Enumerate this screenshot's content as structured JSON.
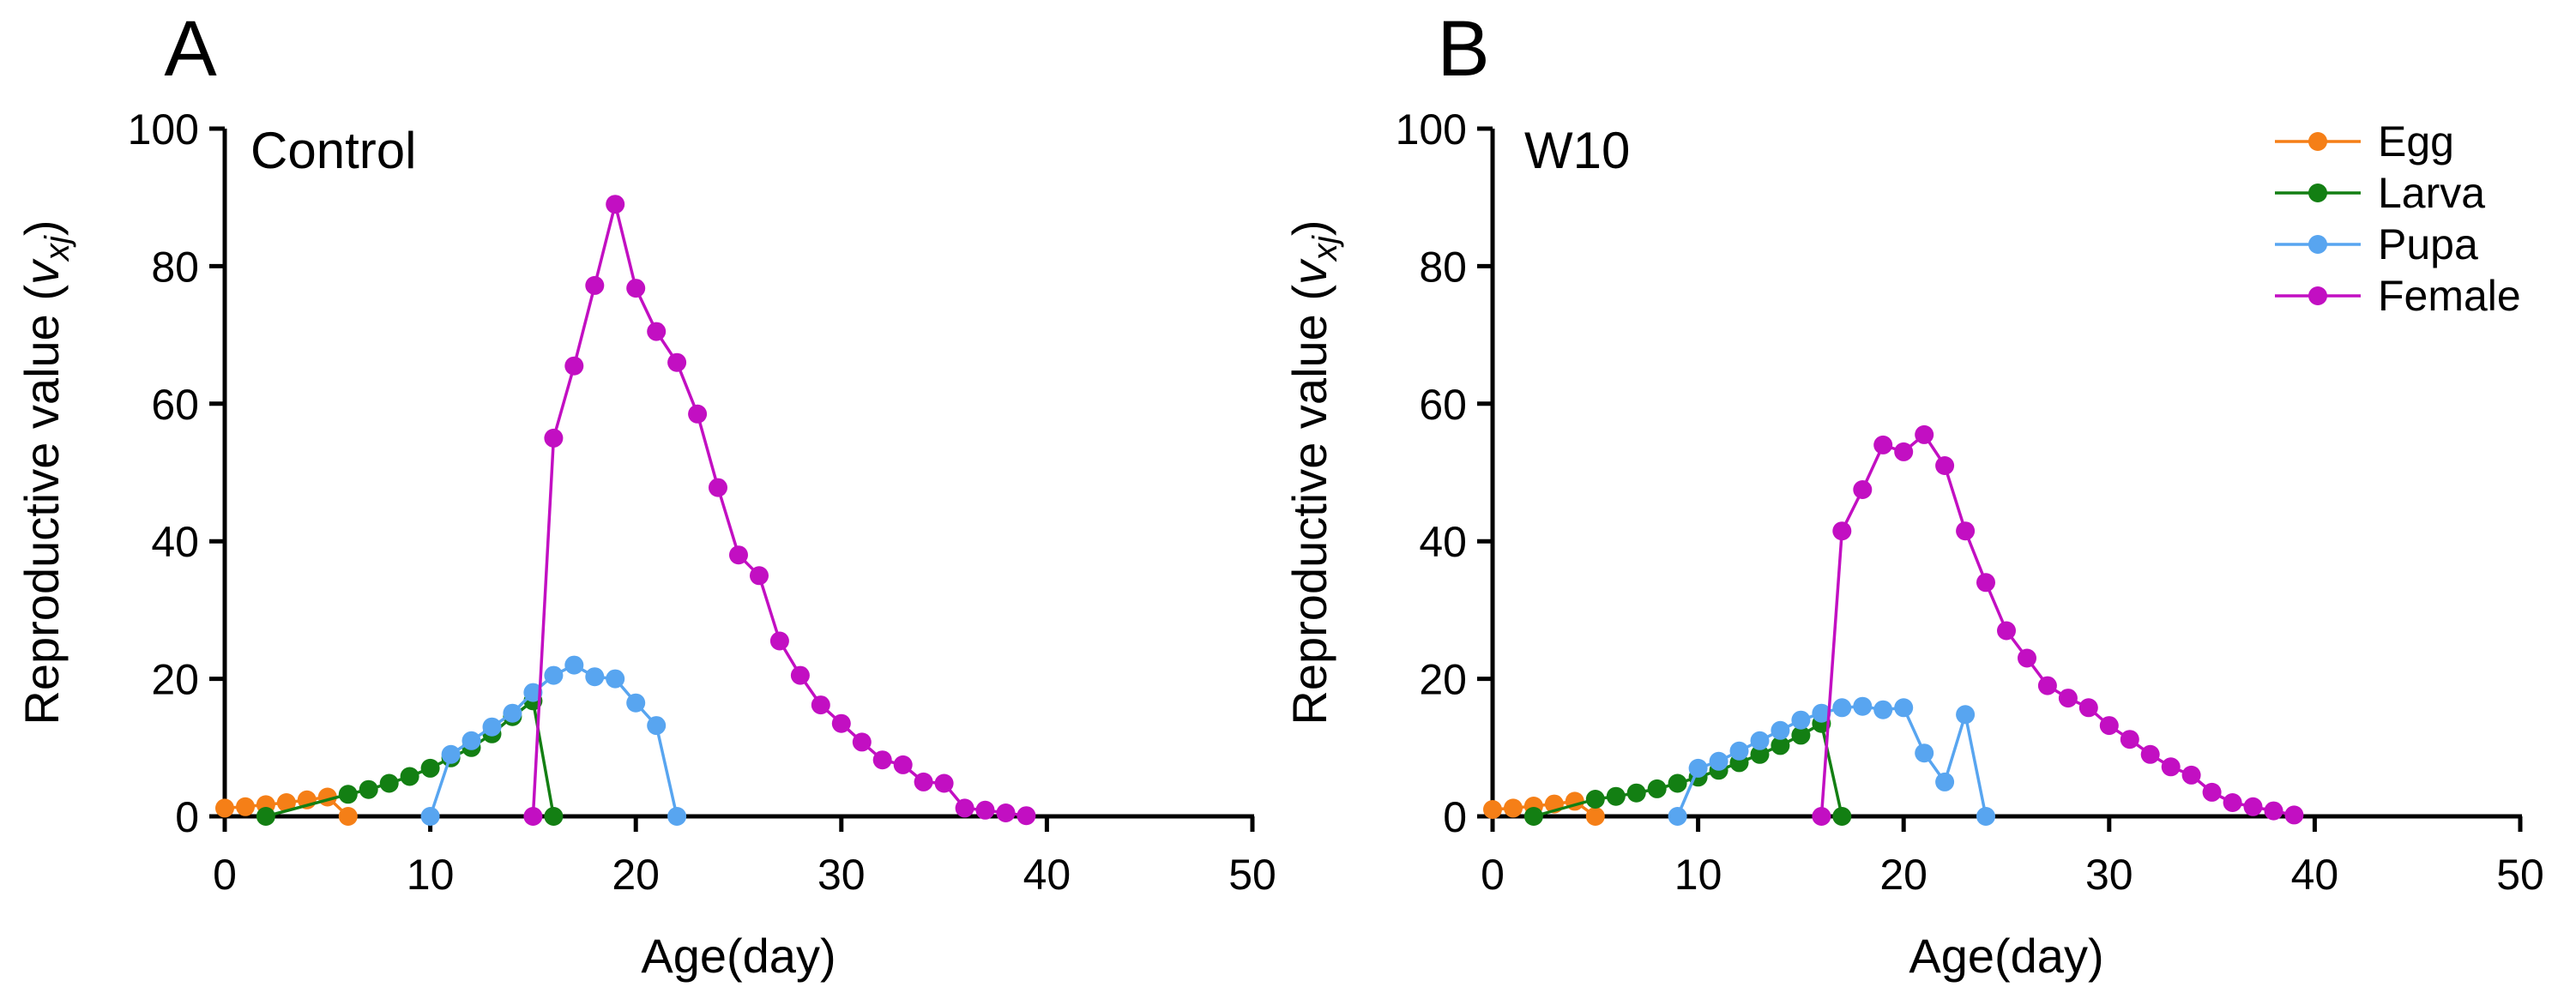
{
  "chart_data": [
    {
      "type": "line",
      "panel_label": "A",
      "title": "Control",
      "xlabel": "Age(day)",
      "ylabel": {
        "base": "Reproductive value (",
        "var": "v",
        "sub": "xj",
        "close": ")"
      },
      "xlim": [
        0,
        50
      ],
      "ylim": [
        0,
        100
      ],
      "xticks": [
        "0",
        "10",
        "20",
        "30",
        "40",
        "50"
      ],
      "yticks": [
        "0",
        "20",
        "40",
        "60",
        "80",
        "100"
      ],
      "series": [
        {
          "name": "Egg",
          "color": "#F57F17",
          "points": [
            [
              0,
              1.2
            ],
            [
              1,
              1.4
            ],
            [
              2,
              1.7
            ],
            [
              3,
              2.0
            ],
            [
              4,
              2.4
            ],
            [
              5,
              2.8
            ],
            [
              6,
              0
            ]
          ]
        },
        {
          "name": "Larva",
          "color": "#137F13",
          "points": [
            [
              2,
              0
            ],
            [
              6,
              3.2
            ],
            [
              7,
              3.9
            ],
            [
              8,
              4.8
            ],
            [
              9,
              5.8
            ],
            [
              10,
              7.0
            ],
            [
              11,
              8.5
            ],
            [
              12,
              10.0
            ],
            [
              13,
              12.0
            ],
            [
              14,
              14.5
            ],
            [
              15,
              16.8
            ],
            [
              16,
              0
            ]
          ]
        },
        {
          "name": "Pupa",
          "color": "#58A5F0",
          "points": [
            [
              10,
              0
            ],
            [
              11,
              9.0
            ],
            [
              12,
              11.0
            ],
            [
              13,
              13.0
            ],
            [
              14,
              15.0
            ],
            [
              15,
              18.0
            ],
            [
              16,
              20.5
            ],
            [
              17,
              22.0
            ],
            [
              18,
              20.3
            ],
            [
              19,
              20.0
            ],
            [
              20,
              16.5
            ],
            [
              21,
              13.2
            ],
            [
              22,
              0
            ]
          ]
        },
        {
          "name": "Female",
          "color": "#C20FC2",
          "points": [
            [
              15,
              0
            ],
            [
              16,
              55.0
            ],
            [
              17,
              65.5
            ],
            [
              18,
              77.2
            ],
            [
              19,
              89.0
            ],
            [
              20,
              76.8
            ],
            [
              21,
              70.5
            ],
            [
              22,
              66.0
            ],
            [
              23,
              58.5
            ],
            [
              24,
              47.8
            ],
            [
              25,
              38.0
            ],
            [
              26,
              35.0
            ],
            [
              27,
              25.5
            ],
            [
              28,
              20.5
            ],
            [
              29,
              16.2
            ],
            [
              30,
              13.5
            ],
            [
              31,
              10.8
            ],
            [
              32,
              8.2
            ],
            [
              33,
              7.5
            ],
            [
              34,
              5.0
            ],
            [
              35,
              4.8
            ],
            [
              36,
              1.2
            ],
            [
              37,
              0.9
            ],
            [
              38,
              0.5
            ],
            [
              39,
              0.1
            ]
          ]
        }
      ]
    },
    {
      "type": "line",
      "panel_label": "B",
      "title": "W10",
      "xlabel": "Age(day)",
      "ylabel": {
        "base": "Reproductive value (",
        "var": "v",
        "sub": "xj",
        "close": ")"
      },
      "xlim": [
        0,
        50
      ],
      "ylim": [
        0,
        100
      ],
      "xticks": [
        "0",
        "10",
        "20",
        "30",
        "40",
        "50"
      ],
      "yticks": [
        "0",
        "20",
        "40",
        "60",
        "80",
        "100"
      ],
      "series": [
        {
          "name": "Egg",
          "color": "#F57F17",
          "points": [
            [
              0,
              1.0
            ],
            [
              1,
              1.2
            ],
            [
              2,
              1.5
            ],
            [
              3,
              1.8
            ],
            [
              4,
              2.2
            ],
            [
              5,
              0
            ]
          ]
        },
        {
          "name": "Larva",
          "color": "#137F13",
          "points": [
            [
              2,
              0
            ],
            [
              5,
              2.5
            ],
            [
              6,
              2.9
            ],
            [
              7,
              3.4
            ],
            [
              8,
              4.0
            ],
            [
              9,
              4.8
            ],
            [
              10,
              5.7
            ],
            [
              11,
              6.7
            ],
            [
              12,
              7.8
            ],
            [
              13,
              9.0
            ],
            [
              14,
              10.3
            ],
            [
              15,
              11.8
            ],
            [
              16,
              13.5
            ],
            [
              17,
              0
            ]
          ]
        },
        {
          "name": "Pupa",
          "color": "#58A5F0",
          "points": [
            [
              9,
              0
            ],
            [
              10,
              7.0
            ],
            [
              11,
              8.0
            ],
            [
              12,
              9.5
            ],
            [
              13,
              11.0
            ],
            [
              14,
              12.5
            ],
            [
              15,
              14.0
            ],
            [
              16,
              15.0
            ],
            [
              17,
              15.8
            ],
            [
              18,
              16.0
            ],
            [
              19,
              15.5
            ],
            [
              20,
              15.8
            ],
            [
              21,
              9.2
            ],
            [
              22,
              5.0
            ],
            [
              23,
              14.8
            ],
            [
              24,
              0
            ]
          ]
        },
        {
          "name": "Female",
          "color": "#C20FC2",
          "points": [
            [
              16,
              0
            ],
            [
              17,
              41.5
            ],
            [
              18,
              47.5
            ],
            [
              19,
              54.0
            ],
            [
              20,
              53.0
            ],
            [
              21,
              55.5
            ],
            [
              22,
              51.0
            ],
            [
              23,
              41.5
            ],
            [
              24,
              34.0
            ],
            [
              25,
              27.0
            ],
            [
              26,
              23.0
            ],
            [
              27,
              19.0
            ],
            [
              28,
              17.2
            ],
            [
              29,
              15.8
            ],
            [
              30,
              13.2
            ],
            [
              31,
              11.2
            ],
            [
              32,
              9.0
            ],
            [
              33,
              7.2
            ],
            [
              34,
              6.0
            ],
            [
              35,
              3.5
            ],
            [
              36,
              2.0
            ],
            [
              37,
              1.4
            ],
            [
              38,
              0.8
            ],
            [
              39,
              0.2
            ]
          ]
        }
      ]
    }
  ],
  "legend": [
    {
      "name": "Egg",
      "color": "#F57F17"
    },
    {
      "name": "Larva",
      "color": "#137F13"
    },
    {
      "name": "Pupa",
      "color": "#58A5F0"
    },
    {
      "name": "Female",
      "color": "#C20FC2"
    }
  ]
}
